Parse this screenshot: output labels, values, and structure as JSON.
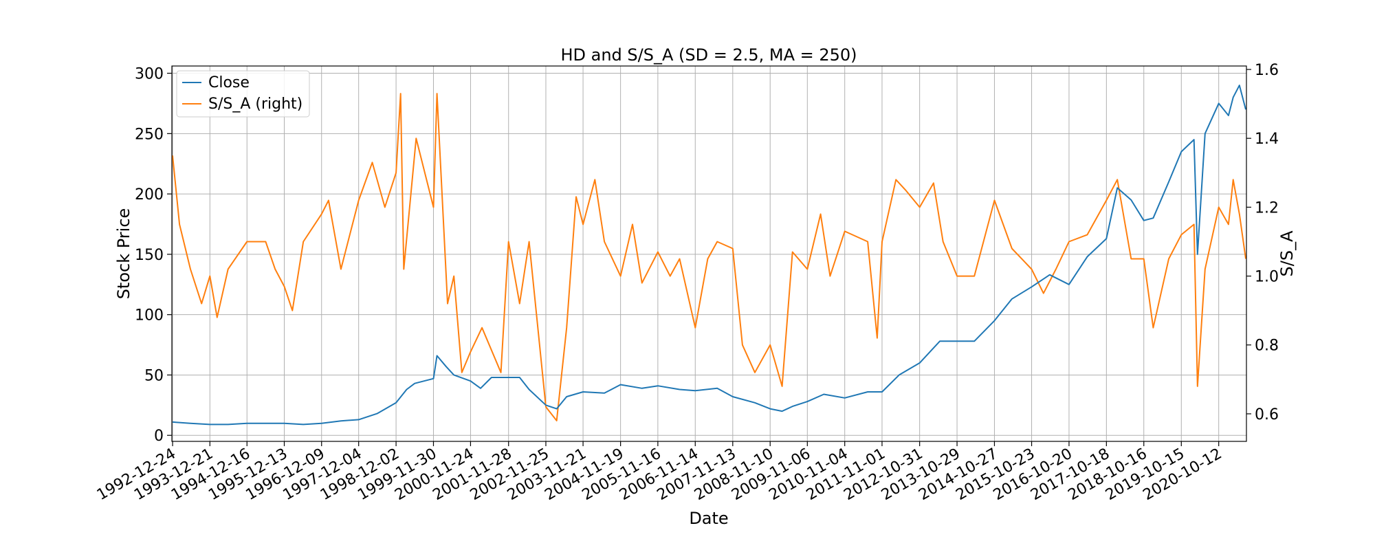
{
  "chart_data": {
    "type": "line",
    "title": "HD and S/S_A (SD = 2.5, MA = 250)",
    "xlabel": "Date",
    "ylabel_left": "Stock Price",
    "ylabel_right": "S/S_A",
    "x_tick_labels": [
      "1992-12-24",
      "1993-12-21",
      "1994-12-16",
      "1995-12-13",
      "1996-12-09",
      "1997-12-04",
      "1998-12-02",
      "1999-11-30",
      "2000-11-24",
      "2001-11-28",
      "2002-11-25",
      "2003-11-21",
      "2004-11-19",
      "2005-11-16",
      "2006-11-14",
      "2007-11-13",
      "2008-11-10",
      "2009-11-06",
      "2010-11-04",
      "2011-11-01",
      "2012-10-31",
      "2013-10-29",
      "2014-10-27",
      "2015-10-23",
      "2016-10-20",
      "2017-10-18",
      "2018-10-16",
      "2019-10-15",
      "2020-10-12"
    ],
    "ylim_left": [
      -5,
      306
    ],
    "yticks_left": [
      0,
      50,
      100,
      150,
      200,
      250,
      300
    ],
    "ylim_right": [
      0.52,
      1.61
    ],
    "yticks_right": [
      "0.6",
      "0.8",
      "1.0",
      "1.2",
      "1.4",
      "1.6"
    ],
    "grid": true,
    "legend_position": "top-left",
    "series": [
      {
        "name": "Close",
        "axis": "left",
        "color": "#1f77b4",
        "points": [
          [
            "1992-12-24",
            11
          ],
          [
            "1993-06-15",
            10
          ],
          [
            "1993-12-21",
            9
          ],
          [
            "1994-06-15",
            9
          ],
          [
            "1994-12-16",
            10
          ],
          [
            "1995-06-15",
            10
          ],
          [
            "1995-12-13",
            10
          ],
          [
            "1996-06-15",
            9
          ],
          [
            "1996-12-09",
            10
          ],
          [
            "1997-06-15",
            12
          ],
          [
            "1997-12-04",
            13
          ],
          [
            "1998-06-01",
            18
          ],
          [
            "1998-12-02",
            27
          ],
          [
            "1999-03-15",
            38
          ],
          [
            "1999-06-01",
            43
          ],
          [
            "1999-11-30",
            47
          ],
          [
            "2000-01-03",
            66
          ],
          [
            "2000-04-01",
            57
          ],
          [
            "2000-06-15",
            50
          ],
          [
            "2000-11-24",
            45
          ],
          [
            "2001-03-01",
            39
          ],
          [
            "2001-06-15",
            48
          ],
          [
            "2001-11-28",
            48
          ],
          [
            "2002-03-15",
            48
          ],
          [
            "2002-06-15",
            38
          ],
          [
            "2002-11-25",
            25
          ],
          [
            "2003-03-10",
            22
          ],
          [
            "2003-06-15",
            32
          ],
          [
            "2003-11-21",
            36
          ],
          [
            "2004-06-15",
            35
          ],
          [
            "2004-11-19",
            42
          ],
          [
            "2005-06-15",
            39
          ],
          [
            "2005-11-16",
            41
          ],
          [
            "2006-06-15",
            38
          ],
          [
            "2006-11-14",
            37
          ],
          [
            "2007-06-15",
            39
          ],
          [
            "2007-11-13",
            32
          ],
          [
            "2008-06-15",
            27
          ],
          [
            "2008-11-10",
            22
          ],
          [
            "2009-03-06",
            20
          ],
          [
            "2009-06-15",
            24
          ],
          [
            "2009-11-06",
            28
          ],
          [
            "2010-04-15",
            34
          ],
          [
            "2010-11-04",
            31
          ],
          [
            "2011-06-15",
            36
          ],
          [
            "2011-11-01",
            36
          ],
          [
            "2012-04-15",
            50
          ],
          [
            "2012-10-31",
            60
          ],
          [
            "2013-05-15",
            78
          ],
          [
            "2013-10-29",
            78
          ],
          [
            "2014-04-15",
            78
          ],
          [
            "2014-10-27",
            95
          ],
          [
            "2015-04-15",
            113
          ],
          [
            "2015-10-23",
            123
          ],
          [
            "2016-04-15",
            133
          ],
          [
            "2016-10-20",
            125
          ],
          [
            "2017-04-15",
            148
          ],
          [
            "2017-10-18",
            163
          ],
          [
            "2018-02-01",
            205
          ],
          [
            "2018-06-15",
            195
          ],
          [
            "2018-10-16",
            178
          ],
          [
            "2019-01-15",
            180
          ],
          [
            "2019-06-15",
            210
          ],
          [
            "2019-10-15",
            235
          ],
          [
            "2020-02-15",
            245
          ],
          [
            "2020-03-20",
            150
          ],
          [
            "2020-06-01",
            250
          ],
          [
            "2020-10-12",
            275
          ],
          [
            "2021-01-15",
            265
          ],
          [
            "2021-03-01",
            280
          ],
          [
            "2021-05-01",
            290
          ],
          [
            "2021-07-01",
            270
          ]
        ]
      },
      {
        "name": "S/S_A (right)",
        "axis": "right",
        "color": "#ff7f0e",
        "points": [
          [
            "1992-12-24",
            1.35
          ],
          [
            "1993-03-01",
            1.15
          ],
          [
            "1993-06-15",
            1.02
          ],
          [
            "1993-10-01",
            0.92
          ],
          [
            "1993-12-21",
            1.0
          ],
          [
            "1994-03-01",
            0.88
          ],
          [
            "1994-06-15",
            1.02
          ],
          [
            "1994-12-16",
            1.1
          ],
          [
            "1995-06-15",
            1.1
          ],
          [
            "1995-09-15",
            1.02
          ],
          [
            "1995-12-13",
            0.97
          ],
          [
            "1996-03-01",
            0.9
          ],
          [
            "1996-06-15",
            1.1
          ],
          [
            "1996-12-09",
            1.18
          ],
          [
            "1997-02-15",
            1.22
          ],
          [
            "1997-06-15",
            1.02
          ],
          [
            "1997-12-04",
            1.22
          ],
          [
            "1998-04-15",
            1.33
          ],
          [
            "1998-08-15",
            1.2
          ],
          [
            "1998-12-02",
            1.3
          ],
          [
            "1999-01-15",
            1.53
          ],
          [
            "1999-02-15",
            1.02
          ],
          [
            "1999-06-15",
            1.4
          ],
          [
            "1999-11-30",
            1.2
          ],
          [
            "2000-01-03",
            1.53
          ],
          [
            "2000-04-15",
            0.92
          ],
          [
            "2000-06-15",
            1.0
          ],
          [
            "2000-09-01",
            0.72
          ],
          [
            "2000-11-24",
            0.78
          ],
          [
            "2001-03-15",
            0.85
          ],
          [
            "2001-09-15",
            0.72
          ],
          [
            "2001-11-28",
            1.1
          ],
          [
            "2002-03-15",
            0.92
          ],
          [
            "2002-06-15",
            1.1
          ],
          [
            "2002-11-25",
            0.62
          ],
          [
            "2003-03-10",
            0.58
          ],
          [
            "2003-06-15",
            0.85
          ],
          [
            "2003-09-15",
            1.23
          ],
          [
            "2003-11-21",
            1.15
          ],
          [
            "2004-03-15",
            1.28
          ],
          [
            "2004-06-15",
            1.1
          ],
          [
            "2004-11-19",
            1.0
          ],
          [
            "2005-03-15",
            1.15
          ],
          [
            "2005-06-15",
            0.98
          ],
          [
            "2005-11-16",
            1.07
          ],
          [
            "2006-03-15",
            1.0
          ],
          [
            "2006-06-15",
            1.05
          ],
          [
            "2006-11-14",
            0.85
          ],
          [
            "2007-03-15",
            1.05
          ],
          [
            "2007-06-15",
            1.1
          ],
          [
            "2007-11-13",
            1.08
          ],
          [
            "2008-02-15",
            0.8
          ],
          [
            "2008-06-15",
            0.72
          ],
          [
            "2008-11-10",
            0.8
          ],
          [
            "2009-03-06",
            0.68
          ],
          [
            "2009-06-15",
            1.07
          ],
          [
            "2009-11-06",
            1.02
          ],
          [
            "2010-03-15",
            1.18
          ],
          [
            "2010-06-15",
            1.0
          ],
          [
            "2010-11-04",
            1.13
          ],
          [
            "2011-06-15",
            1.1
          ],
          [
            "2011-09-15",
            0.82
          ],
          [
            "2011-11-01",
            1.1
          ],
          [
            "2012-03-15",
            1.28
          ],
          [
            "2012-06-15",
            1.25
          ],
          [
            "2012-10-31",
            1.2
          ],
          [
            "2013-03-15",
            1.27
          ],
          [
            "2013-06-15",
            1.1
          ],
          [
            "2013-10-29",
            1.0
          ],
          [
            "2014-04-15",
            1.0
          ],
          [
            "2014-10-27",
            1.22
          ],
          [
            "2015-04-15",
            1.08
          ],
          [
            "2015-10-23",
            1.02
          ],
          [
            "2016-02-15",
            0.95
          ],
          [
            "2016-06-15",
            1.02
          ],
          [
            "2016-10-20",
            1.1
          ],
          [
            "2017-04-15",
            1.12
          ],
          [
            "2017-10-18",
            1.22
          ],
          [
            "2018-02-01",
            1.28
          ],
          [
            "2018-06-15",
            1.05
          ],
          [
            "2018-10-16",
            1.05
          ],
          [
            "2019-01-15",
            0.85
          ],
          [
            "2019-06-15",
            1.05
          ],
          [
            "2019-10-15",
            1.12
          ],
          [
            "2020-02-15",
            1.15
          ],
          [
            "2020-03-20",
            0.68
          ],
          [
            "2020-06-01",
            1.02
          ],
          [
            "2020-10-12",
            1.2
          ],
          [
            "2021-01-15",
            1.15
          ],
          [
            "2021-03-01",
            1.28
          ],
          [
            "2021-05-01",
            1.18
          ],
          [
            "2021-07-01",
            1.05
          ]
        ]
      }
    ]
  }
}
